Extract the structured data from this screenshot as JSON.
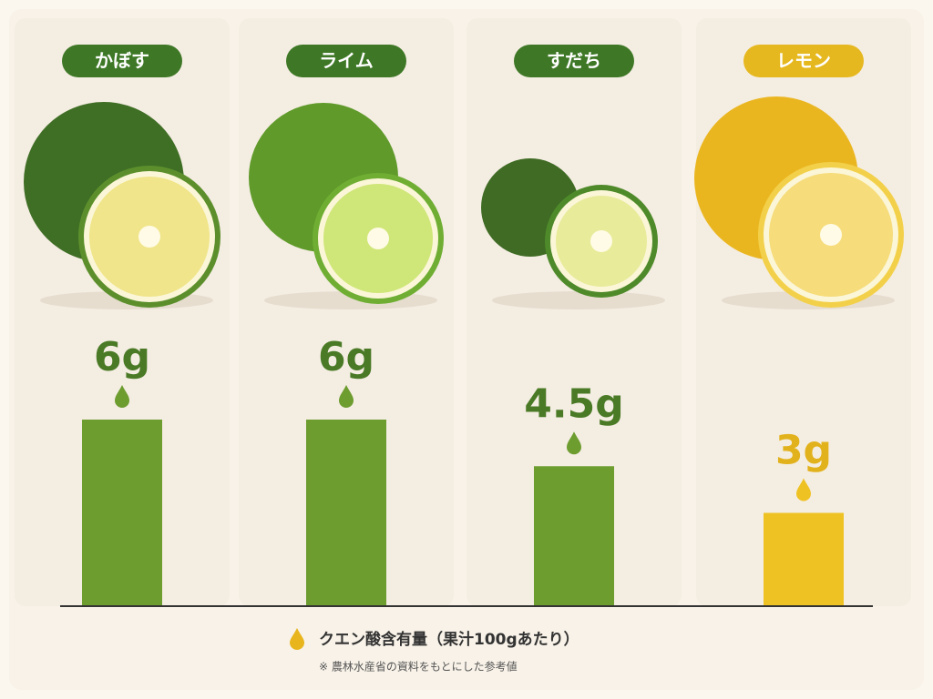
{
  "chart_data": {
    "type": "bar",
    "categories": [
      "かぼす",
      "ライム",
      "すだち",
      "レモン"
    ],
    "values": [
      6,
      6,
      4.5,
      3
    ],
    "value_labels": [
      "6g",
      "6g",
      "4.5g",
      "3g"
    ],
    "colors": [
      "#6d9c2f",
      "#6d9c2f",
      "#6d9c2f",
      "#efc224"
    ],
    "label_colors": [
      "#3e7826",
      "#3e7826",
      "#3e7826",
      "#e6b81f"
    ],
    "value_label_colors": [
      "#4a7a26",
      "#4a7a26",
      "#4a7a26",
      "#e2b21c"
    ],
    "y_label": "クエン酸含有量（果汁100gあたり）",
    "note": "※ 農林水産省の資料をもとにした参考値"
  }
}
